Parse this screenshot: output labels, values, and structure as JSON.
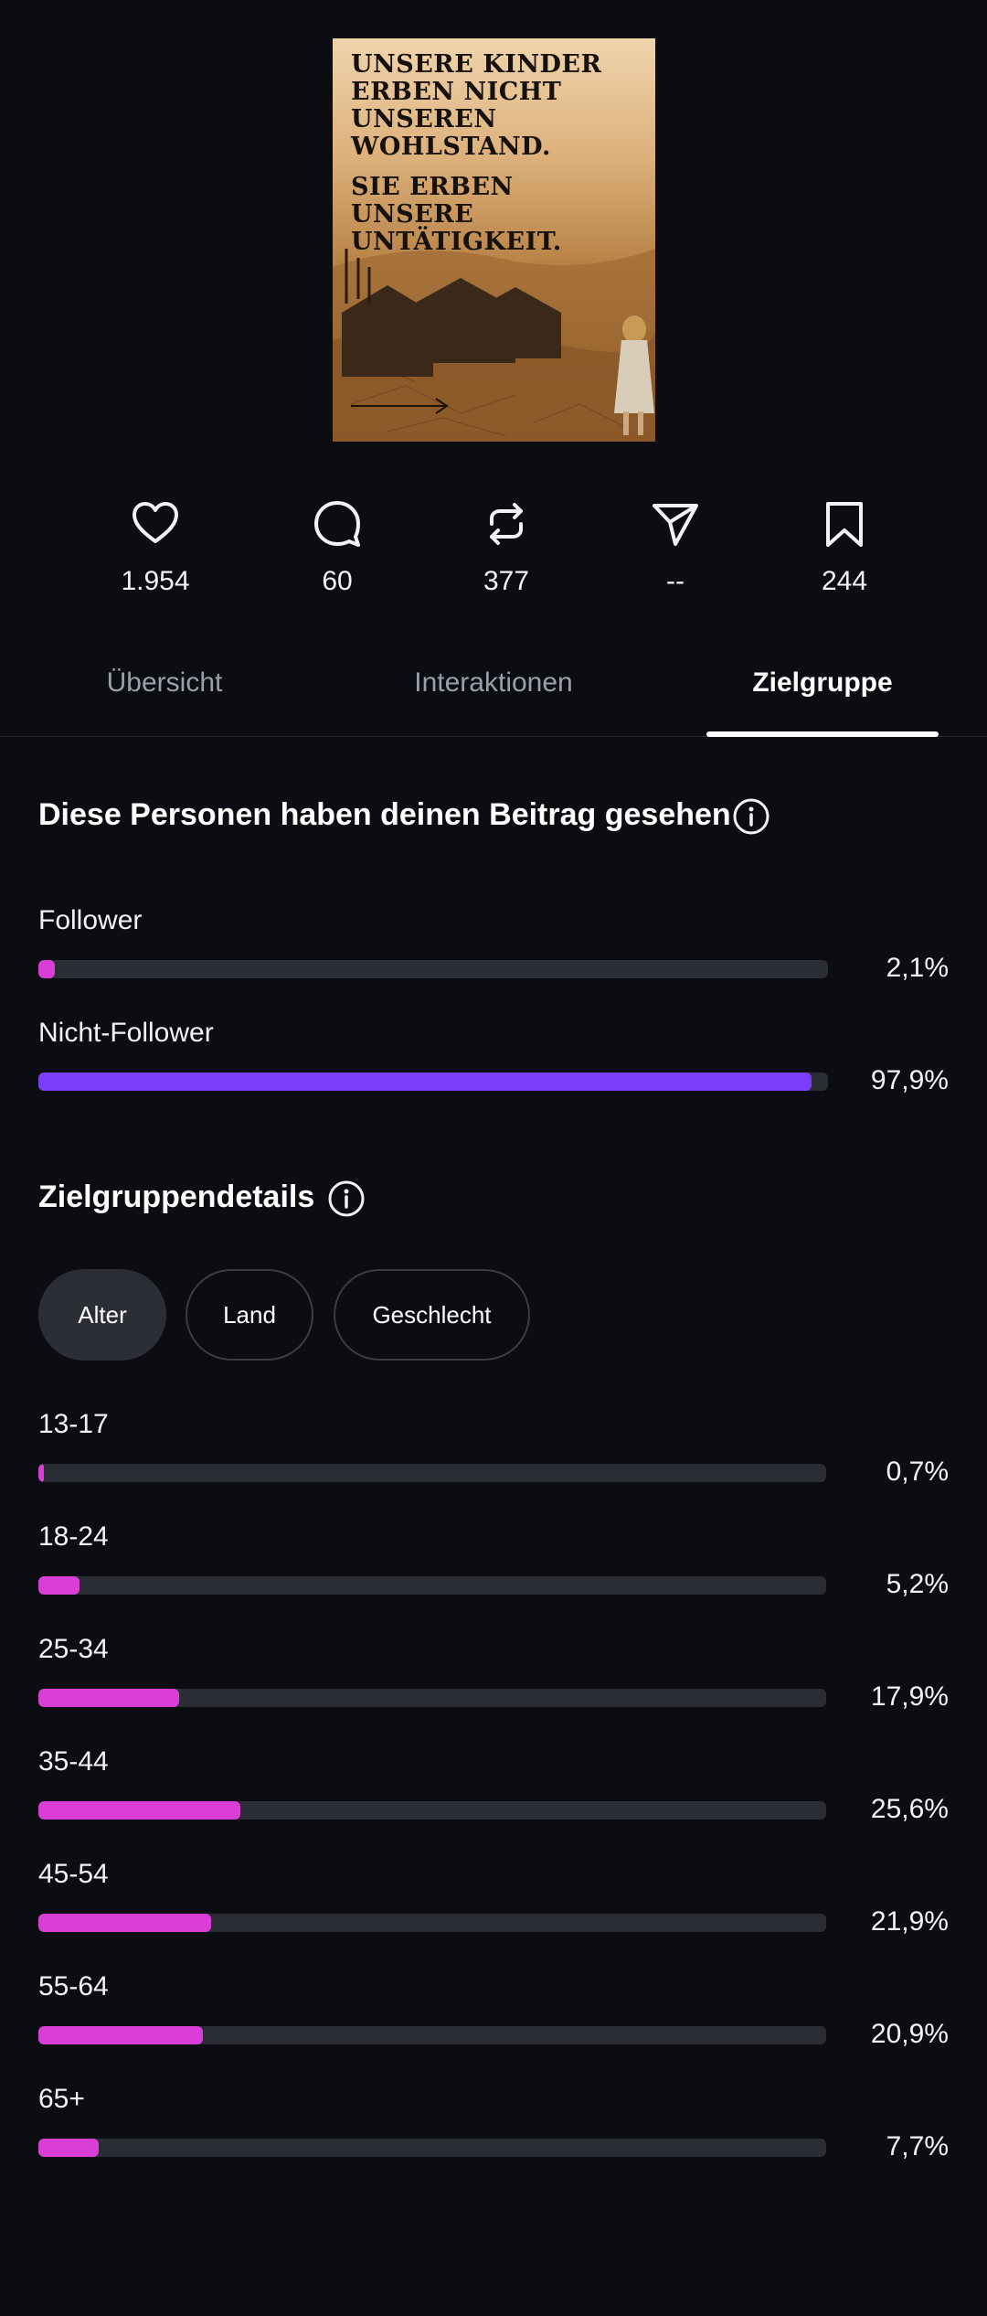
{
  "post": {
    "text_line1": "UNSERE KINDER ERBEN NICHT UNSEREN WOHLSTAND.",
    "text_line2": "SIE ERBEN UNSERE UNTÄTIGKEIT."
  },
  "stats": [
    {
      "icon": "heart-icon",
      "value": "1.954"
    },
    {
      "icon": "comment-icon",
      "value": "60"
    },
    {
      "icon": "repost-icon",
      "value": "377"
    },
    {
      "icon": "send-icon",
      "value": "--"
    },
    {
      "icon": "bookmark-icon",
      "value": "244"
    }
  ],
  "tabs": [
    {
      "label": "Übersicht",
      "active": false
    },
    {
      "label": "Interaktionen",
      "active": false
    },
    {
      "label": "Zielgruppe",
      "active": true
    }
  ],
  "viewers": {
    "title": "Diese Personen haben deinen Beitrag gesehen",
    "rows": [
      {
        "label": "Follower",
        "percent": "2,1%",
        "fraction": 0.021,
        "color": "#d93fd6"
      },
      {
        "label": "Nicht-Follower",
        "percent": "97,9%",
        "fraction": 0.979,
        "color": "#7a3dfa"
      }
    ]
  },
  "details": {
    "title": "Zielgruppendetails",
    "chips": [
      {
        "label": "Alter",
        "active": true
      },
      {
        "label": "Land",
        "active": false
      },
      {
        "label": "Geschlecht",
        "active": false
      }
    ],
    "bar_color": "#d93fd6",
    "rows": [
      {
        "label": "13-17",
        "percent": "0,7%",
        "fraction": 0.007
      },
      {
        "label": "18-24",
        "percent": "5,2%",
        "fraction": 0.052
      },
      {
        "label": "25-34",
        "percent": "17,9%",
        "fraction": 0.179
      },
      {
        "label": "35-44",
        "percent": "25,6%",
        "fraction": 0.256
      },
      {
        "label": "45-54",
        "percent": "21,9%",
        "fraction": 0.219
      },
      {
        "label": "55-64",
        "percent": "20,9%",
        "fraction": 0.209
      },
      {
        "label": "65+",
        "percent": "7,7%",
        "fraction": 0.077
      }
    ]
  }
}
